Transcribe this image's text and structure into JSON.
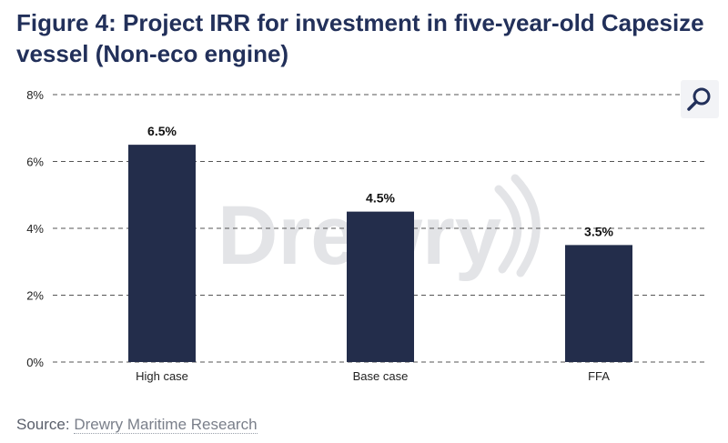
{
  "title": "Figure 4: Project IRR for investment in five-year-old Capesize vessel (Non-eco engine)",
  "watermark": "Drewry",
  "source": {
    "prefix": "Source:",
    "name": "Drewry Maritime Research"
  },
  "colors": {
    "bar": "#232d4b",
    "title": "#22305a",
    "grid": "#555555",
    "watermark": "#e3e4e7"
  },
  "zoom_icon": "magnifier-icon",
  "chart_data": {
    "type": "bar",
    "categories": [
      "High case",
      "Base case",
      "FFA"
    ],
    "values": [
      6.5,
      4.5,
      3.5
    ],
    "value_labels": [
      "6.5%",
      "4.5%",
      "3.5%"
    ],
    "ylim": [
      0,
      8
    ],
    "yticks": [
      0,
      2,
      4,
      6,
      8
    ],
    "ytick_labels": [
      "0%",
      "2%",
      "4%",
      "6%",
      "8%"
    ],
    "grid": "dashed-horizontal",
    "legend": "none"
  }
}
